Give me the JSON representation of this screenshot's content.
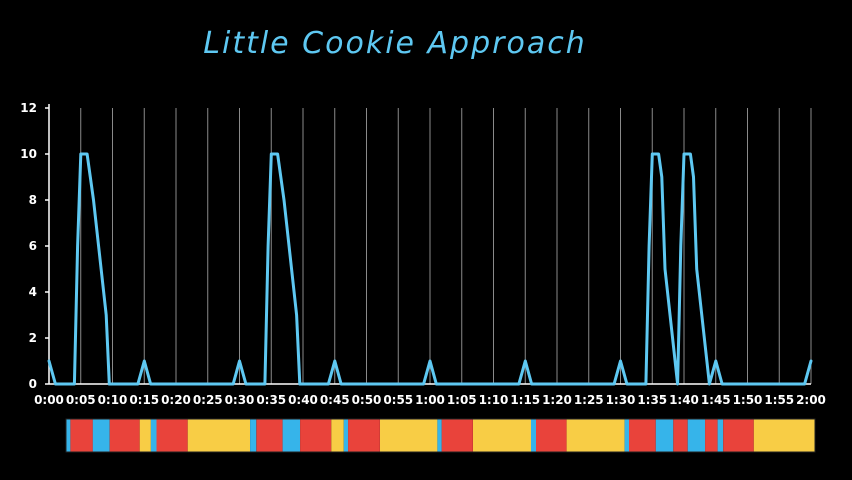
{
  "chart_data": {
    "type": "line",
    "title": "Little Cookie Approach",
    "xlabel": "",
    "ylabel": "",
    "ylim": [
      0,
      12
    ],
    "yticks": [
      0,
      2,
      4,
      6,
      8,
      10,
      12
    ],
    "xlim": [
      0,
      120
    ],
    "xticks": [
      "0:00",
      "0:05",
      "0:10",
      "0:15",
      "0:20",
      "0:25",
      "0:30",
      "0:35",
      "0:40",
      "0:45",
      "0:50",
      "0:55",
      "1:00",
      "1:05",
      "1:10",
      "1:15",
      "1:20",
      "1:25",
      "1:30",
      "1:35",
      "1:40",
      "1:45",
      "1:50",
      "1:55",
      "2:00"
    ],
    "grid": "vertical",
    "colors": {
      "line": "#5ec8f2",
      "grid": "#8a8a8a",
      "axis": "#ffffff"
    },
    "series": [
      {
        "name": "",
        "x": [
          0,
          0.5,
          1,
          4,
          4.5,
          5,
          6,
          6.5,
          7,
          9,
          9.5,
          10,
          14,
          15,
          16,
          29,
          30,
          31,
          34,
          34.5,
          35,
          36,
          36.5,
          37,
          39,
          39.5,
          40,
          44,
          45,
          46,
          59,
          60,
          61,
          74,
          75,
          76,
          89,
          90,
          91,
          94,
          94.5,
          95,
          96,
          96.5,
          97,
          99,
          99.5,
          100,
          101,
          101.5,
          102,
          104,
          105,
          106,
          119,
          120
        ],
        "values": [
          1,
          0.5,
          0,
          0,
          6,
          10,
          10,
          9,
          8,
          3,
          0,
          0,
          0,
          1,
          0,
          0,
          1,
          0,
          0,
          6,
          10,
          10,
          9,
          8,
          3,
          0,
          0,
          0,
          1,
          0,
          0,
          1,
          0,
          0,
          1,
          0,
          0,
          1,
          0,
          0,
          6,
          10,
          10,
          9,
          5,
          0,
          6,
          10,
          10,
          9,
          5,
          0,
          1,
          0,
          0,
          1
        ]
      }
    ],
    "timeline_bar": {
      "colors": {
        "red": "#e9433b",
        "blue": "#36b4ea",
        "yellow": "#f8cd45"
      },
      "segments": [
        {
          "color": "blue",
          "start": 0,
          "end": 0.7
        },
        {
          "color": "red",
          "start": 0.7,
          "end": 4.3
        },
        {
          "color": "blue",
          "start": 4.3,
          "end": 7.0
        },
        {
          "color": "red",
          "start": 7.0,
          "end": 11.8
        },
        {
          "color": "yellow",
          "start": 11.8,
          "end": 13.6
        },
        {
          "color": "blue",
          "start": 13.6,
          "end": 14.5
        },
        {
          "color": "red",
          "start": 14.5,
          "end": 19.5
        },
        {
          "color": "yellow",
          "start": 19.5,
          "end": 29.5
        },
        {
          "color": "blue",
          "start": 29.5,
          "end": 30.5
        },
        {
          "color": "red",
          "start": 30.5,
          "end": 34.7
        },
        {
          "color": "blue",
          "start": 34.7,
          "end": 37.5
        },
        {
          "color": "red",
          "start": 37.5,
          "end": 42.5
        },
        {
          "color": "yellow",
          "start": 42.5,
          "end": 44.5
        },
        {
          "color": "blue",
          "start": 44.5,
          "end": 45.2
        },
        {
          "color": "red",
          "start": 45.2,
          "end": 50.3
        },
        {
          "color": "yellow",
          "start": 50.3,
          "end": 59.5
        },
        {
          "color": "blue",
          "start": 59.5,
          "end": 60.2
        },
        {
          "color": "red",
          "start": 60.2,
          "end": 65.2
        },
        {
          "color": "yellow",
          "start": 65.2,
          "end": 74.5
        },
        {
          "color": "blue",
          "start": 74.5,
          "end": 75.3
        },
        {
          "color": "red",
          "start": 75.3,
          "end": 80.2
        },
        {
          "color": "yellow",
          "start": 80.2,
          "end": 89.5
        },
        {
          "color": "blue",
          "start": 89.5,
          "end": 90.2
        },
        {
          "color": "red",
          "start": 90.2,
          "end": 94.5
        },
        {
          "color": "blue",
          "start": 94.5,
          "end": 97.3
        },
        {
          "color": "red",
          "start": 97.3,
          "end": 99.6
        },
        {
          "color": "blue",
          "start": 99.6,
          "end": 102.4
        },
        {
          "color": "red",
          "start": 102.4,
          "end": 104.4
        },
        {
          "color": "blue",
          "start": 104.4,
          "end": 105.3
        },
        {
          "color": "red",
          "start": 105.3,
          "end": 110.2
        },
        {
          "color": "yellow",
          "start": 110.2,
          "end": 120
        }
      ]
    }
  }
}
